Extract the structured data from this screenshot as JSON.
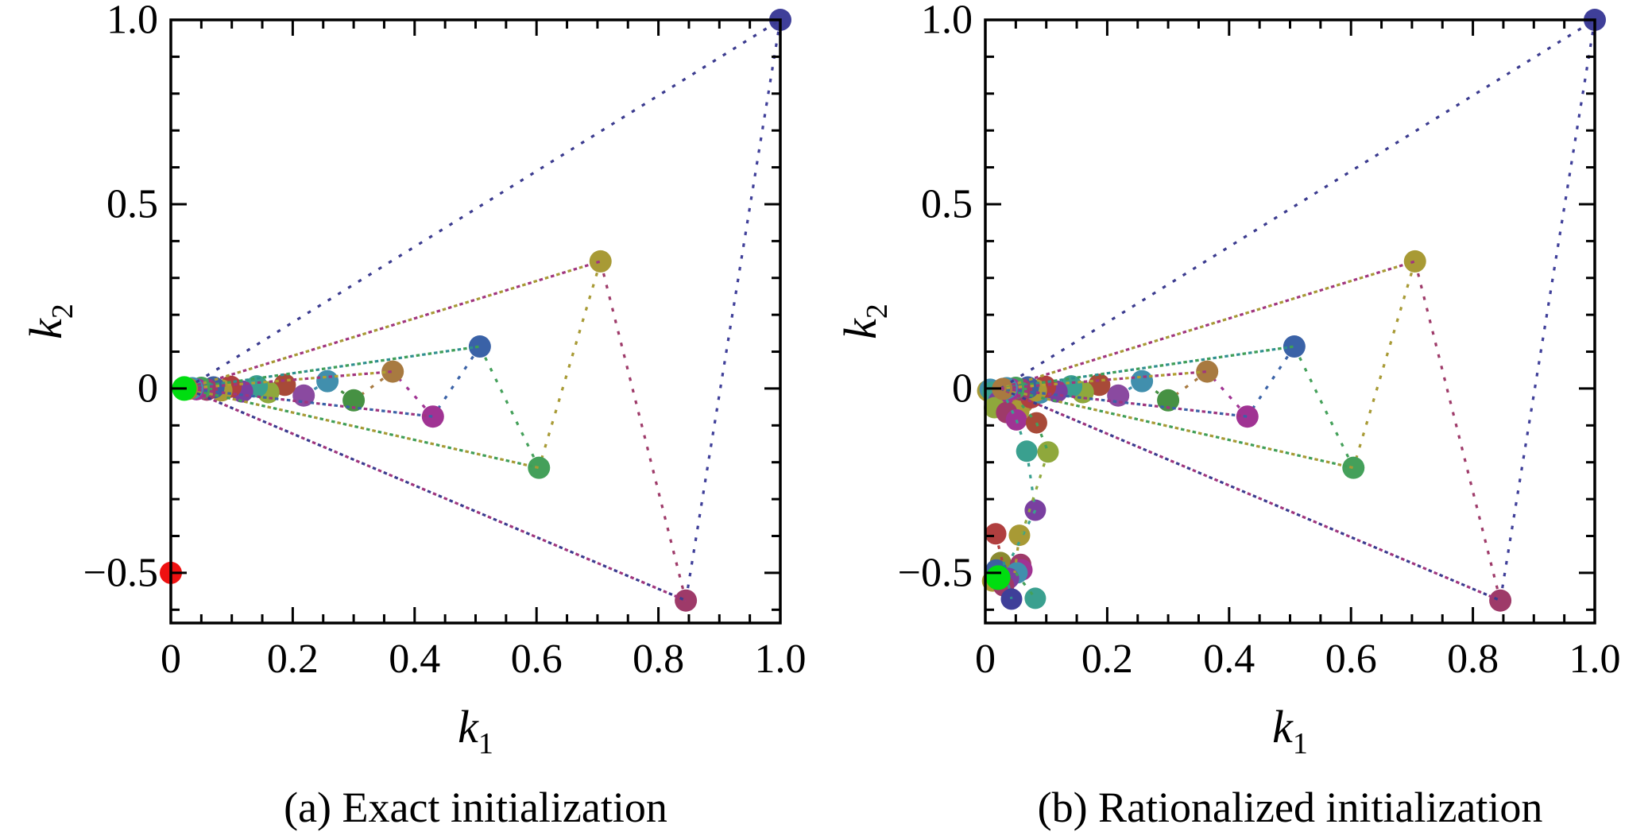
{
  "figure_bg": "#ffffff",
  "chart_data": {
    "type": "scatter",
    "grid": false,
    "legend": false,
    "plots": [
      {
        "caption": "(a) Exact initialization",
        "xlabel": {
          "base": "k",
          "sub": "1"
        },
        "ylabel": {
          "base": "k",
          "sub": "2"
        },
        "xlim": [
          0,
          1.0
        ],
        "ylim": [
          -0.636,
          1.0
        ],
        "xminor": 0.05,
        "yminor": 0.1,
        "xticks": [
          {
            "v": 0,
            "label": "0"
          },
          {
            "v": 0.2,
            "label": "0.2"
          },
          {
            "v": 0.4,
            "label": "0.4"
          },
          {
            "v": 0.6,
            "label": "0.6"
          },
          {
            "v": 0.8,
            "label": "0.8"
          },
          {
            "v": 1.0,
            "label": "1.0"
          }
        ],
        "yticks": [
          {
            "v": 1.0,
            "label": "1.0"
          },
          {
            "v": 0.5,
            "label": "0.5"
          },
          {
            "v": 0,
            "label": "0"
          },
          {
            "v": -0.5,
            "label": "−0.5"
          }
        ],
        "chain": [
          [
            1.0,
            1.0,
            "#3f3f99"
          ],
          [
            0.845,
            -0.575,
            "#9e3a69"
          ],
          [
            0.705,
            0.345,
            "#a89a35"
          ],
          [
            0.604,
            -0.215,
            "#44a05a"
          ],
          [
            0.507,
            0.114,
            "#3a62a7"
          ],
          [
            0.43,
            -0.076,
            "#a03393"
          ],
          [
            0.364,
            0.046,
            "#a87a40"
          ],
          [
            0.3,
            -0.032,
            "#469143"
          ],
          [
            0.257,
            0.02,
            "#418fad"
          ],
          [
            0.218,
            -0.019,
            "#8a4aa0"
          ],
          [
            0.187,
            0.01,
            "#a84a38"
          ],
          [
            0.16,
            -0.01,
            "#8fa83c"
          ],
          [
            0.141,
            0.006,
            "#3aa08f"
          ],
          [
            0.117,
            -0.008,
            "#7a3fa0"
          ],
          [
            0.098,
            0.005,
            "#b03f3f"
          ],
          [
            0.083,
            -0.005,
            "#a89a35"
          ],
          [
            0.07,
            0.003,
            "#3d5fa0"
          ],
          [
            0.059,
            -0.003,
            "#9e3a69"
          ],
          [
            0.05,
            0.002,
            "#44a05a"
          ],
          [
            0.042,
            -0.002,
            "#a03393"
          ],
          [
            0.035,
            0.001,
            "#418fad"
          ],
          [
            0.029,
            -0.001,
            "#a87a40"
          ]
        ],
        "fan_origin": [
          0.025,
          0.0
        ],
        "fan": [
          {
            "to": 0,
            "colors": [
              "#3b3b8f"
            ]
          },
          {
            "to": 1,
            "colors": [
              "#3b3b8f",
              "#a0357e"
            ]
          },
          {
            "to": 2,
            "colors": [
              "#a0357e",
              "#a89a35"
            ]
          },
          {
            "to": 3,
            "colors": [
              "#a89a35",
              "#3f9e57"
            ]
          },
          {
            "to": 4,
            "colors": [
              "#2e8f8f",
              "#3f9e57"
            ]
          },
          {
            "to": 5,
            "colors": [
              "#a0357e",
              "#3a62a7"
            ]
          },
          {
            "to": 6,
            "colors": [
              "#a0357e",
              "#b0a030"
            ]
          }
        ],
        "cluster": [],
        "trail": [],
        "trail_lines": [],
        "extra_points": [
          [
            0.0,
            -0.5,
            "#ee1111"
          ]
        ],
        "converged": {
          "x": 0.022,
          "y": 0.0,
          "color": "#00dd10"
        }
      },
      {
        "caption": "(b) Rationalized initialization",
        "xlabel": {
          "base": "k",
          "sub": "1"
        },
        "ylabel": {
          "base": "k",
          "sub": "2"
        },
        "xlim": [
          0,
          1.0
        ],
        "ylim": [
          -0.636,
          1.0
        ],
        "xminor": 0.05,
        "yminor": 0.1,
        "xticks": [
          {
            "v": 0,
            "label": "0"
          },
          {
            "v": 0.2,
            "label": "0.2"
          },
          {
            "v": 0.4,
            "label": "0.4"
          },
          {
            "v": 0.6,
            "label": "0.6"
          },
          {
            "v": 0.8,
            "label": "0.8"
          },
          {
            "v": 1.0,
            "label": "1.0"
          }
        ],
        "yticks": [
          {
            "v": 1.0,
            "label": "1.0"
          },
          {
            "v": 0.5,
            "label": "0.5"
          },
          {
            "v": 0,
            "label": "0"
          },
          {
            "v": -0.5,
            "label": "−0.5"
          }
        ],
        "chain": [
          [
            1.0,
            1.0,
            "#3f3f99"
          ],
          [
            0.845,
            -0.575,
            "#9e3a69"
          ],
          [
            0.705,
            0.345,
            "#a89a35"
          ],
          [
            0.604,
            -0.215,
            "#44a05a"
          ],
          [
            0.507,
            0.114,
            "#3a62a7"
          ],
          [
            0.43,
            -0.076,
            "#a03393"
          ],
          [
            0.364,
            0.046,
            "#a87a40"
          ],
          [
            0.3,
            -0.032,
            "#469143"
          ],
          [
            0.257,
            0.02,
            "#418fad"
          ],
          [
            0.218,
            -0.019,
            "#8a4aa0"
          ],
          [
            0.187,
            0.01,
            "#a84a38"
          ],
          [
            0.16,
            -0.01,
            "#8fa83c"
          ],
          [
            0.141,
            0.006,
            "#3aa08f"
          ],
          [
            0.117,
            -0.008,
            "#7a3fa0"
          ],
          [
            0.098,
            0.005,
            "#b03f3f"
          ],
          [
            0.083,
            -0.005,
            "#a89a35"
          ],
          [
            0.07,
            0.003,
            "#3d5fa0"
          ],
          [
            0.059,
            -0.003,
            "#9e3a69"
          ],
          [
            0.05,
            0.002,
            "#44a05a"
          ],
          [
            0.042,
            -0.002,
            "#a03393"
          ],
          [
            0.035,
            0.001,
            "#418fad"
          ],
          [
            0.029,
            -0.001,
            "#a87a40"
          ]
        ],
        "fan_origin": [
          0.025,
          0.0
        ],
        "fan": [
          {
            "to": 0,
            "colors": [
              "#3b3b8f"
            ]
          },
          {
            "to": 1,
            "colors": [
              "#3b3b8f",
              "#a0357e"
            ]
          },
          {
            "to": 2,
            "colors": [
              "#a0357e",
              "#a89a35"
            ]
          },
          {
            "to": 3,
            "colors": [
              "#a89a35",
              "#3f9e57"
            ]
          },
          {
            "to": 4,
            "colors": [
              "#2e8f8f",
              "#3f9e57"
            ]
          },
          {
            "to": 5,
            "colors": [
              "#a0357e",
              "#3a62a7"
            ]
          },
          {
            "to": 6,
            "colors": [
              "#a0357e",
              "#b0a030"
            ]
          }
        ],
        "cluster": [
          [
            0.004,
            -0.006,
            "#a89a35"
          ],
          [
            0.008,
            -0.002,
            "#418fad"
          ],
          [
            0.012,
            -0.01,
            "#3aa08f"
          ],
          [
            0.03,
            -0.016,
            "#3d5fa0"
          ],
          [
            0.048,
            -0.022,
            "#469143"
          ],
          [
            0.022,
            -0.035,
            "#7a3fa0"
          ],
          [
            0.04,
            -0.042,
            "#a03393"
          ],
          [
            0.062,
            -0.038,
            "#a87a40"
          ],
          [
            0.015,
            -0.052,
            "#8fa83c"
          ],
          [
            0.055,
            -0.06,
            "#a89a35"
          ],
          [
            0.075,
            -0.025,
            "#b03f3f"
          ],
          [
            0.09,
            -0.012,
            "#418fad"
          ],
          [
            0.035,
            -0.065,
            "#9e3a69"
          ]
        ],
        "trail": [
          [
            0.051,
            -0.085,
            "#a03393"
          ],
          [
            0.084,
            -0.093,
            "#a84a38"
          ],
          [
            0.068,
            -0.17,
            "#3aa08f"
          ],
          [
            0.103,
            -0.172,
            "#8fa83c"
          ],
          [
            0.082,
            -0.33,
            "#7a3fa0"
          ],
          [
            0.017,
            -0.394,
            "#b03f3f"
          ],
          [
            0.056,
            -0.398,
            "#a89a35"
          ],
          [
            0.025,
            -0.472,
            "#8a8a30"
          ],
          [
            0.058,
            -0.477,
            "#9e3a69"
          ],
          [
            0.018,
            -0.492,
            "#3d5fa0"
          ],
          [
            0.06,
            -0.492,
            "#a03393"
          ],
          [
            0.052,
            -0.5,
            "#418fad"
          ],
          [
            0.038,
            -0.515,
            "#7a3fa0"
          ],
          [
            0.012,
            -0.522,
            "#a89a35"
          ],
          [
            0.03,
            -0.535,
            "#9e3a69"
          ],
          [
            0.043,
            -0.571,
            "#3f3f99"
          ],
          [
            0.082,
            -0.569,
            "#3aa08f"
          ]
        ],
        "trail_lines": [
          [
            0.035,
            -0.03,
            0.051,
            -0.085,
            "#3aa08f"
          ],
          [
            0.051,
            -0.085,
            0.068,
            -0.17,
            "#3aa08f"
          ],
          [
            0.068,
            -0.17,
            0.082,
            -0.33,
            "#3aa08f"
          ],
          [
            0.082,
            -0.33,
            0.04,
            -0.468,
            "#3aa08f"
          ],
          [
            0.06,
            -0.045,
            0.084,
            -0.093,
            "#44a05a"
          ],
          [
            0.084,
            -0.093,
            0.103,
            -0.172,
            "#44a05a"
          ],
          [
            0.103,
            -0.172,
            0.06,
            -0.395,
            "#8fa83c"
          ],
          [
            0.017,
            -0.394,
            0.028,
            -0.47,
            "#b03f3f"
          ],
          [
            0.056,
            -0.398,
            0.048,
            -0.5,
            "#a89a35"
          ],
          [
            0.03,
            -0.47,
            0.043,
            -0.571,
            "#2e8f8f"
          ],
          [
            0.05,
            -0.5,
            0.082,
            -0.569,
            "#44a05a"
          ]
        ],
        "extra_points": [],
        "converged": {
          "x": 0.021,
          "y": -0.513,
          "color": "#00dd10"
        }
      }
    ]
  }
}
